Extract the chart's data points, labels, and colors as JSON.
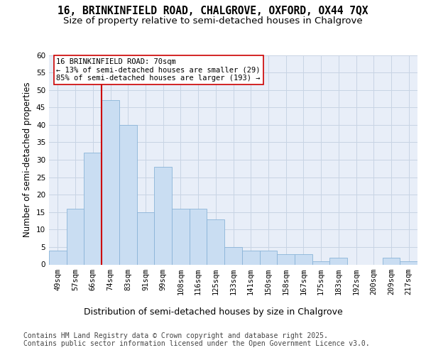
{
  "title_line1": "16, BRINKINFIELD ROAD, CHALGROVE, OXFORD, OX44 7QX",
  "title_line2": "Size of property relative to semi-detached houses in Chalgrove",
  "xlabel": "Distribution of semi-detached houses by size in Chalgrove",
  "ylabel": "Number of semi-detached properties",
  "categories": [
    "49sqm",
    "57sqm",
    "66sqm",
    "74sqm",
    "83sqm",
    "91sqm",
    "99sqm",
    "108sqm",
    "116sqm",
    "125sqm",
    "133sqm",
    "141sqm",
    "150sqm",
    "158sqm",
    "167sqm",
    "175sqm",
    "183sqm",
    "192sqm",
    "200sqm",
    "209sqm",
    "217sqm"
  ],
  "values": [
    4,
    16,
    32,
    47,
    40,
    15,
    28,
    16,
    16,
    13,
    5,
    4,
    4,
    3,
    3,
    1,
    2,
    0,
    0,
    2,
    1
  ],
  "bar_color": "#c9ddf2",
  "bar_edgecolor": "#8ab4d8",
  "grid_color": "#c8d4e4",
  "background_color": "#e8eef8",
  "vline_color": "#cc0000",
  "vline_pos": 2.5,
  "annotation_title": "16 BRINKINFIELD ROAD: 70sqm",
  "annotation_line1": "← 13% of semi-detached houses are smaller (29)",
  "annotation_line2": "85% of semi-detached houses are larger (193) →",
  "annotation_box_facecolor": "#ffffff",
  "annotation_box_edgecolor": "#cc0000",
  "footer": "Contains HM Land Registry data © Crown copyright and database right 2025.\nContains public sector information licensed under the Open Government Licence v3.0.",
  "ylim": [
    0,
    60
  ],
  "yticks": [
    0,
    5,
    10,
    15,
    20,
    25,
    30,
    35,
    40,
    45,
    50,
    55,
    60
  ],
  "title_fontsize": 10.5,
  "subtitle_fontsize": 9.5,
  "ylabel_fontsize": 8.5,
  "xlabel_fontsize": 9,
  "tick_fontsize": 7.5,
  "annotation_fontsize": 7.5,
  "footer_fontsize": 7
}
